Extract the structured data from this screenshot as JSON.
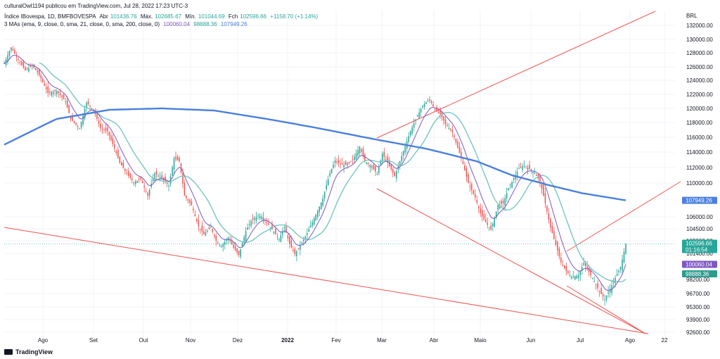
{
  "header": {
    "publisher": "culturalOwl1194 publicou em TradingView.com, Jul 28, 2022 17:23 UTC-3",
    "symbol": "Índice IBovespa, 1D, BMFBOVESPA",
    "ohlc": [
      {
        "label": "Abr",
        "value": "101436.76"
      },
      {
        "label": "Máx.",
        "value": "102685.67"
      },
      {
        "label": "Mín.",
        "value": "101044.69"
      },
      {
        "label": "Fch",
        "value": "102596.66"
      }
    ],
    "change": "+1158.70 (+1.14%)",
    "ma_label": "3 MAs (ema, 9, close, 0, sma, 21, close, 0, sma, 200, close, 0)",
    "ma_values": [
      "100060.04",
      "98888.36",
      "107949.26"
    ]
  },
  "currency": "BRL",
  "brand": "TradingView",
  "colors": {
    "up": "#26a69a",
    "down": "#ef5350",
    "ema9": "#7e57c2",
    "sma21": "#76c7c0",
    "sma200": "#4a7fe0",
    "trend": "#ef5350"
  },
  "chart_data": {
    "type": "candlestick",
    "x_tick_labels": [
      "Ago",
      "Set",
      "Out",
      "Nov",
      "Dez",
      "2022",
      "Fev",
      "Mar",
      "Abr",
      "Maio",
      "Jun",
      "Jul",
      "Ago",
      "22"
    ],
    "y_tick_labels": [
      "132000.00",
      "130000.00",
      "128000.00",
      "126000.00",
      "124000.00",
      "122000.00",
      "120000.00",
      "118000.00",
      "116000.00",
      "114000.00",
      "112000.00",
      "110000.00",
      "106000.00",
      "104500.00",
      "103000.00",
      "101400.00",
      "98200.00",
      "96700.00",
      "95300.00",
      "93900.00",
      "92600.00"
    ],
    "last_price": {
      "value": "102596.66",
      "countdown": "01:16:54"
    },
    "series": [
      {
        "name": "EMA 9",
        "last": "100060.04"
      },
      {
        "name": "SMA 21",
        "last": "98888.36"
      },
      {
        "name": "SMA 200",
        "last": "107949.26"
      }
    ],
    "close_path": [
      [
        0,
        126500
      ],
      [
        4,
        128800
      ],
      [
        8,
        127000
      ],
      [
        12,
        125500
      ],
      [
        16,
        126200
      ],
      [
        20,
        124800
      ],
      [
        25,
        122200
      ],
      [
        30,
        122500
      ],
      [
        35,
        121000
      ],
      [
        38,
        118500
      ],
      [
        43,
        117200
      ],
      [
        47,
        120800
      ],
      [
        51,
        119800
      ],
      [
        55,
        117200
      ],
      [
        59,
        116800
      ],
      [
        63,
        114500
      ],
      [
        66,
        112600
      ],
      [
        70,
        111200
      ],
      [
        74,
        110100
      ],
      [
        78,
        110500
      ],
      [
        82,
        108500
      ],
      [
        86,
        111300
      ],
      [
        90,
        110600
      ],
      [
        94,
        109700
      ],
      [
        97,
        113200
      ],
      [
        100,
        112800
      ],
      [
        103,
        108500
      ],
      [
        107,
        107400
      ],
      [
        111,
        104800
      ],
      [
        114,
        103800
      ],
      [
        118,
        104700
      ],
      [
        121,
        103000
      ],
      [
        124,
        102300
      ],
      [
        128,
        103400
      ],
      [
        131,
        102100
      ],
      [
        134,
        101200
      ],
      [
        138,
        104200
      ],
      [
        141,
        105500
      ],
      [
        145,
        106200
      ],
      [
        148,
        105900
      ],
      [
        151,
        105000
      ],
      [
        154,
        104100
      ],
      [
        157,
        103200
      ],
      [
        160,
        104700
      ],
      [
        163,
        102600
      ],
      [
        166,
        101300
      ],
      [
        169,
        102400
      ],
      [
        172,
        103500
      ],
      [
        175,
        104900
      ],
      [
        179,
        106700
      ],
      [
        182,
        108200
      ],
      [
        186,
        111300
      ],
      [
        189,
        112900
      ],
      [
        192,
        112400
      ],
      [
        196,
        112300
      ],
      [
        199,
        113000
      ],
      [
        203,
        114700
      ],
      [
        206,
        112800
      ],
      [
        209,
        112300
      ],
      [
        213,
        111200
      ],
      [
        216,
        113800
      ],
      [
        219,
        112600
      ],
      [
        223,
        110900
      ],
      [
        226,
        112800
      ],
      [
        229,
        114800
      ],
      [
        232,
        116800
      ],
      [
        236,
        119000
      ],
      [
        239,
        120400
      ],
      [
        243,
        121300
      ],
      [
        246,
        119800
      ],
      [
        249,
        119200
      ],
      [
        252,
        117800
      ],
      [
        256,
        116700
      ],
      [
        259,
        114600
      ],
      [
        262,
        112500
      ],
      [
        265,
        110000
      ],
      [
        269,
        108300
      ],
      [
        272,
        106400
      ],
      [
        275,
        105300
      ],
      [
        278,
        104400
      ],
      [
        282,
        107400
      ],
      [
        285,
        107600
      ],
      [
        288,
        109400
      ],
      [
        291,
        110600
      ],
      [
        294,
        111900
      ],
      [
        297,
        112300
      ],
      [
        300,
        111800
      ],
      [
        303,
        111300
      ],
      [
        306,
        110200
      ],
      [
        309,
        107600
      ],
      [
        312,
        104700
      ],
      [
        315,
        102500
      ],
      [
        318,
        100300
      ],
      [
        321,
        99200
      ],
      [
        324,
        98500
      ],
      [
        328,
        98700
      ],
      [
        331,
        100200
      ],
      [
        334,
        99100
      ],
      [
        337,
        98000
      ],
      [
        340,
        96900
      ],
      [
        343,
        96100
      ],
      [
        346,
        97200
      ],
      [
        349,
        98400
      ],
      [
        352,
        99700
      ],
      [
        355,
        102596
      ]
    ]
  }
}
